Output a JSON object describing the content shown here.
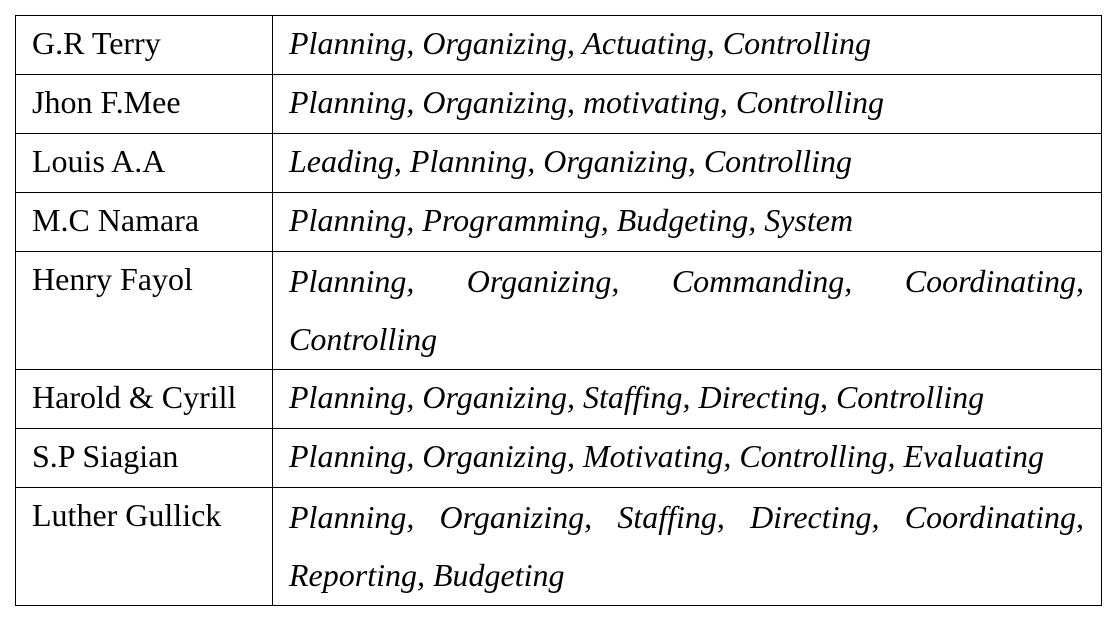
{
  "table": {
    "rows": [
      {
        "author": "G.R Terry",
        "functions": "Planning, Organizing, Actuating, Controlling"
      },
      {
        "author": "Jhon F.Mee",
        "functions": "Planning, Organizing, motivating, Controlling"
      },
      {
        "author": "Louis A.A",
        "functions": "Leading, Planning, Organizing, Controlling"
      },
      {
        "author": "M.C Namara",
        "functions": "Planning, Programming, Budgeting, System"
      },
      {
        "author": "Henry Fayol",
        "functions": "Planning, Organizing, Commanding, Coordinating, Controlling"
      },
      {
        "author": "Harold & Cyrill",
        "functions": "Planning, Organizing, Staffing, Directing, Controlling"
      },
      {
        "author": "S.P Siagian",
        "functions": "Planning, Organizing, Motivating, Controlling, Evaluating"
      },
      {
        "author": "Luther Gullick",
        "functions": "Planning, Organizing, Staffing, Directing, Coordinating, Reporting, Budgeting"
      }
    ]
  }
}
